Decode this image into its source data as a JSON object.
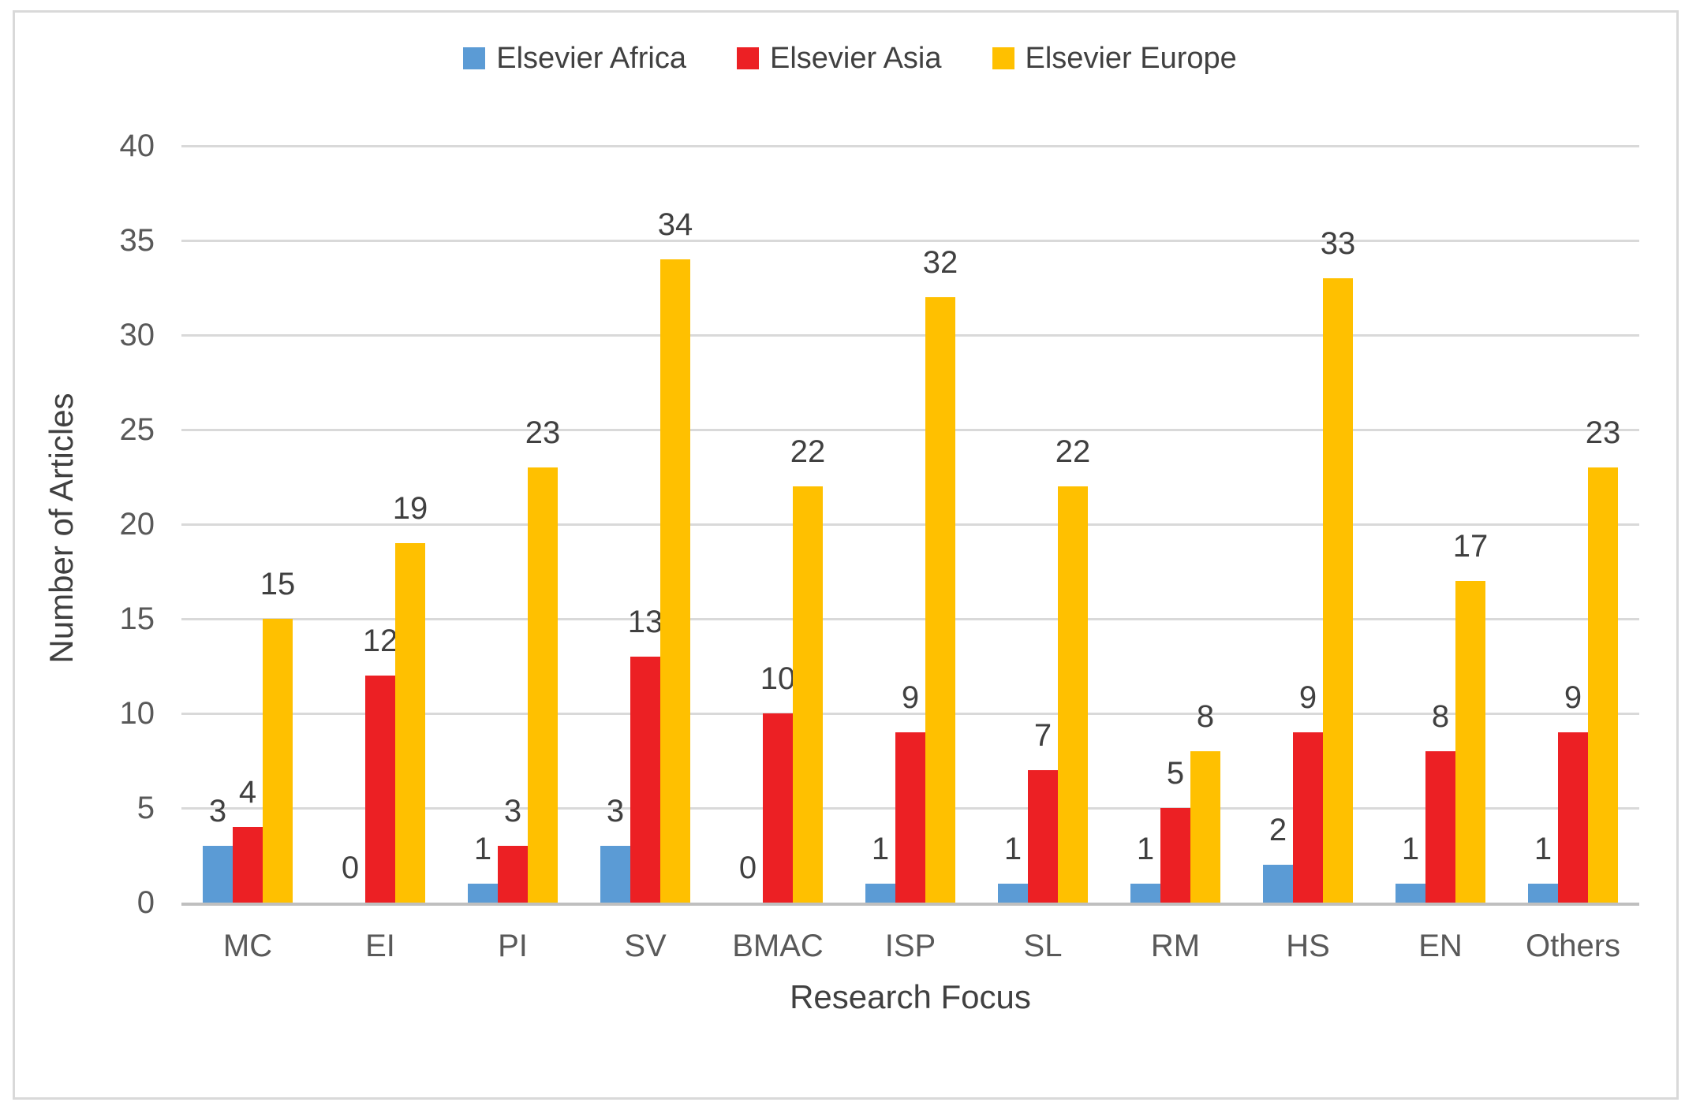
{
  "chart_data": {
    "type": "bar",
    "title": "",
    "categories": [
      "MC",
      "EI",
      "PI",
      "SV",
      "BMAC",
      "ISP",
      "SL",
      "RM",
      "HS",
      "EN",
      "Others"
    ],
    "series": [
      {
        "name": "Elsevier Africa",
        "color": "#5B9BD5",
        "values": [
          3,
          0,
          1,
          3,
          0,
          1,
          1,
          1,
          2,
          1,
          1
        ]
      },
      {
        "name": "Elsevier Asia",
        "color": "#EC2024",
        "values": [
          4,
          12,
          3,
          13,
          10,
          9,
          7,
          5,
          9,
          8,
          9
        ]
      },
      {
        "name": "Elsevier Europe",
        "color": "#FFC000",
        "values": [
          15,
          19,
          23,
          34,
          22,
          32,
          22,
          8,
          33,
          17,
          23
        ]
      }
    ],
    "xlabel": "Research Focus",
    "ylabel": "Number of Articles",
    "ylim": [
      0,
      40
    ],
    "ytick_step": 5,
    "yticks": [
      0,
      5,
      10,
      15,
      20,
      25,
      30,
      35,
      40
    ],
    "grid": true,
    "legend_position": "top",
    "data_labels": true
  },
  "colors": {
    "background": "#FFFFFF",
    "frame_border": "#D9D9D9",
    "gridline": "#D9D9D9",
    "axis_line": "#BFBFBF",
    "tick_text": "#595959",
    "category_text": "#595959",
    "data_label_text": "#404040",
    "axis_title_text": "#404040",
    "legend_text": "#404040"
  }
}
